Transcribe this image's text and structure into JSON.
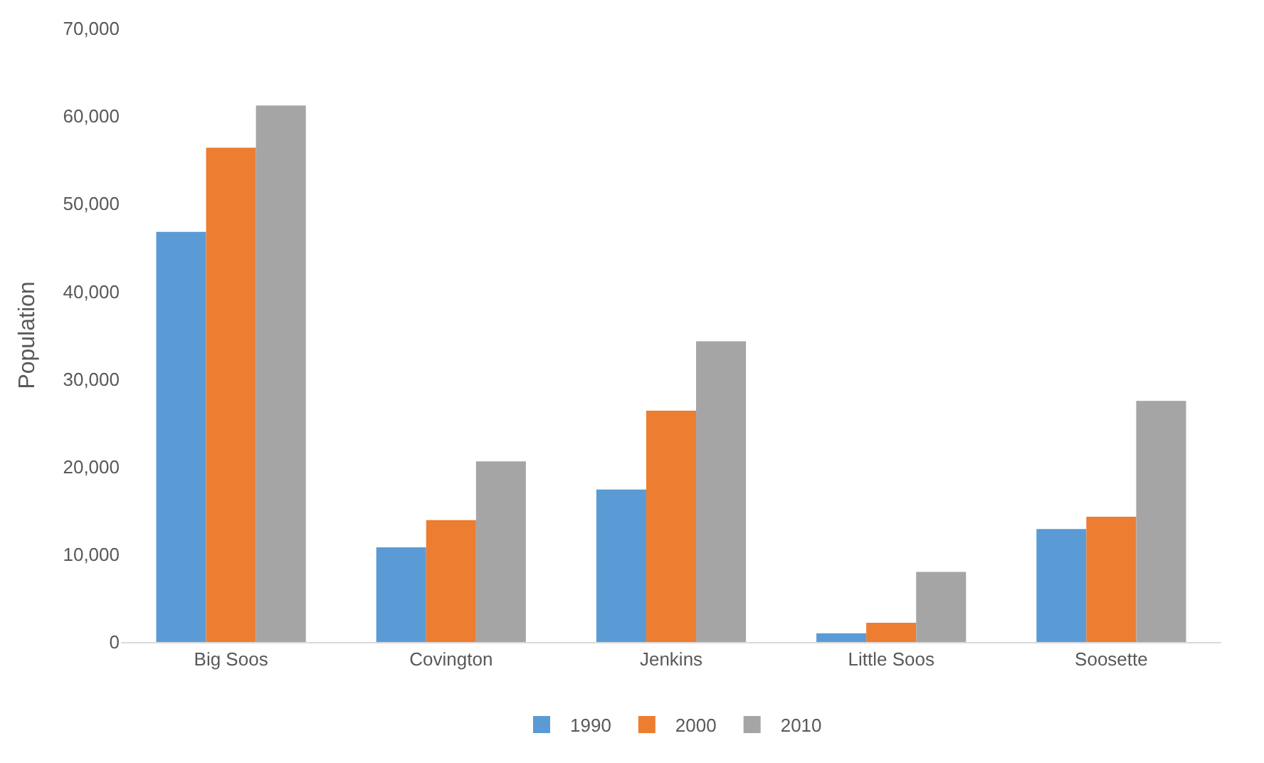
{
  "chart_data": {
    "type": "bar",
    "ylabel": "Population",
    "categories": [
      "Big Soos",
      "Covington",
      "Jenkins",
      "Little Soos",
      "Soosette"
    ],
    "series": [
      {
        "name": "1990",
        "color": "#5b9bd5",
        "values": [
          46800,
          10800,
          17400,
          1000,
          12900
        ]
      },
      {
        "name": "2000",
        "color": "#ed7d31",
        "values": [
          56400,
          13900,
          26400,
          2200,
          14300
        ]
      },
      {
        "name": "2010",
        "color": "#a5a5a5",
        "values": [
          61200,
          20600,
          34300,
          8000,
          27500
        ]
      }
    ],
    "ylim": [
      0,
      70000
    ],
    "yticks": [
      {
        "value": 0,
        "label": "0"
      },
      {
        "value": 10000,
        "label": "10,000"
      },
      {
        "value": 20000,
        "label": "20,000"
      },
      {
        "value": 30000,
        "label": "30,000"
      },
      {
        "value": 40000,
        "label": "40,000"
      },
      {
        "value": 50000,
        "label": "50,000"
      },
      {
        "value": 60000,
        "label": "60,000"
      },
      {
        "value": 70000,
        "label": "70,000"
      }
    ],
    "grid": false,
    "legend": "bottom"
  }
}
